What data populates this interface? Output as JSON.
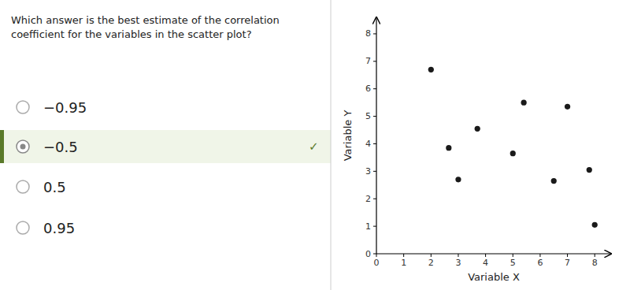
{
  "question": {
    "text": "Which answer is the best estimate of the correlation\ncoefficient for the variables in the scatter plot?",
    "options": [
      "−0.95",
      "−0.5",
      "0.5",
      "0.95"
    ],
    "selected": 1,
    "check": "✓"
  },
  "chart_data": {
    "type": "scatter",
    "x": [
      2.0,
      2.65,
      3.0,
      3.7,
      5.0,
      5.4,
      6.5,
      7.0,
      7.8,
      8.0
    ],
    "values": [
      6.7,
      3.85,
      2.7,
      4.55,
      3.65,
      5.5,
      2.65,
      5.35,
      3.05,
      1.05
    ],
    "color": "#1a1a1a",
    "xlabel": "Variable X",
    "ylabel": "Variable Y",
    "xlim": [
      0,
      8.6
    ],
    "ylim": [
      0,
      8.6
    ],
    "xticks": [
      0,
      1,
      2,
      3,
      4,
      5,
      6,
      7,
      8
    ],
    "yticks": [
      0,
      1,
      2,
      3,
      4,
      5,
      6,
      7,
      8
    ],
    "grid": false
  }
}
